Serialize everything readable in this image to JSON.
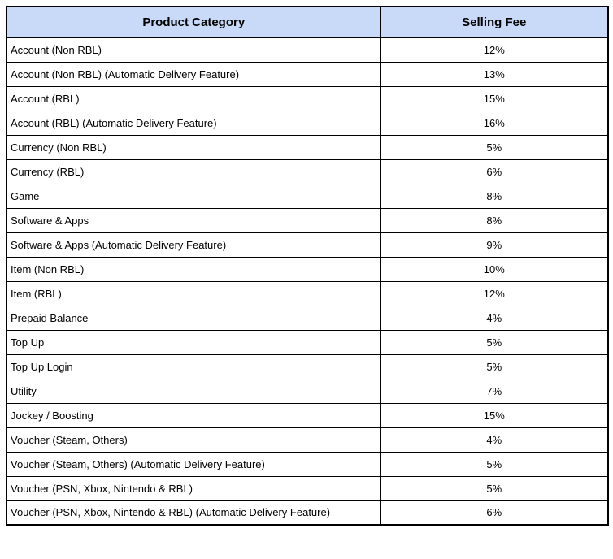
{
  "table": {
    "headers": {
      "category": "Product Category",
      "fee": "Selling Fee"
    },
    "colors": {
      "header_background": "#C9DAF8",
      "border": "#000000",
      "text": "#000000"
    },
    "rows": [
      {
        "category": "Account (Non RBL)",
        "fee": "12%"
      },
      {
        "category": "Account (Non RBL) (Automatic Delivery Feature)",
        "fee": "13%"
      },
      {
        "category": "Account (RBL)",
        "fee": "15%"
      },
      {
        "category": "Account (RBL) (Automatic Delivery Feature)",
        "fee": "16%"
      },
      {
        "category": "Currency (Non RBL)",
        "fee": "5%"
      },
      {
        "category": "Currency (RBL)",
        "fee": "6%"
      },
      {
        "category": "Game",
        "fee": "8%"
      },
      {
        "category": "Software & Apps",
        "fee": "8%"
      },
      {
        "category": "Software & Apps (Automatic Delivery Feature)",
        "fee": "9%"
      },
      {
        "category": "Item (Non RBL)",
        "fee": "10%"
      },
      {
        "category": "Item (RBL)",
        "fee": "12%"
      },
      {
        "category": "Prepaid Balance",
        "fee": "4%"
      },
      {
        "category": "Top Up",
        "fee": "5%"
      },
      {
        "category": "Top Up Login",
        "fee": "5%"
      },
      {
        "category": "Utility",
        "fee": "7%"
      },
      {
        "category": "Jockey / Boosting",
        "fee": "15%"
      },
      {
        "category": "Voucher (Steam, Others)",
        "fee": "4%"
      },
      {
        "category": "Voucher (Steam, Others) (Automatic Delivery Feature)",
        "fee": "5%"
      },
      {
        "category": "Voucher (PSN, Xbox, Nintendo & RBL)",
        "fee": "5%"
      },
      {
        "category": "Voucher (PSN, Xbox, Nintendo & RBL) (Automatic Delivery Feature)",
        "fee": "6%"
      }
    ]
  }
}
